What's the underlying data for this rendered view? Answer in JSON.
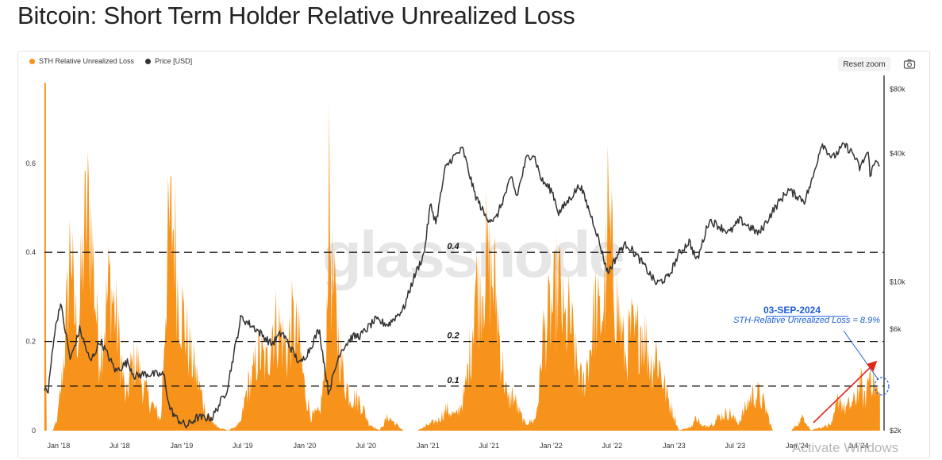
{
  "page": {
    "title": "Bitcoin: Short Term Holder Relative Unrealized Loss"
  },
  "legend": [
    {
      "label": "STH Relative Unrealized Loss",
      "color": "#f7931a"
    },
    {
      "label": "Price [USD]",
      "color": "#333333"
    }
  ],
  "toolbar": {
    "reset_label": "Reset zoom",
    "camera_icon": "camera-icon"
  },
  "watermark": "glassnode",
  "os_overlay": "Activate Windows",
  "chart_data": {
    "type": "area",
    "x_range": [
      "2017-11-20",
      "2024-09-15"
    ],
    "x_ticks": [
      {
        "date": "2018-01-01",
        "label": "Jan '18"
      },
      {
        "date": "2018-07-01",
        "label": "Jul '18"
      },
      {
        "date": "2019-01-01",
        "label": "Jan '19"
      },
      {
        "date": "2019-07-01",
        "label": "Jul '19"
      },
      {
        "date": "2020-01-01",
        "label": "Jan '20"
      },
      {
        "date": "2020-07-01",
        "label": "Jul '20"
      },
      {
        "date": "2021-01-01",
        "label": "Jan '21"
      },
      {
        "date": "2021-07-01",
        "label": "Jul '21"
      },
      {
        "date": "2022-01-01",
        "label": "Jan '22"
      },
      {
        "date": "2022-07-01",
        "label": "Jul '22"
      },
      {
        "date": "2023-01-01",
        "label": "Jan '23"
      },
      {
        "date": "2023-07-01",
        "label": "Jul '23"
      },
      {
        "date": "2024-01-01",
        "label": "Jan '24"
      },
      {
        "date": "2024-07-01",
        "label": "Jul '24"
      }
    ],
    "y_left": {
      "range": [
        0,
        0.79
      ],
      "ticks": [
        {
          "value": 0,
          "label": "0"
        },
        {
          "value": 0.2,
          "label": "0.2"
        },
        {
          "value": 0.4,
          "label": "0.4"
        },
        {
          "value": 0.6,
          "label": "0.6"
        }
      ]
    },
    "y_right": {
      "scale": "log",
      "range": [
        2000,
        90000
      ],
      "ticks": [
        {
          "value": 2000,
          "label": "$2k"
        },
        {
          "value": 6000,
          "label": "$6k"
        },
        {
          "value": 10000,
          "label": "$10k"
        },
        {
          "value": 40000,
          "label": "$40k"
        },
        {
          "value": 80000,
          "label": "$80k"
        }
      ]
    },
    "grid": false,
    "legend_position": "top-left",
    "reference_lines": [
      {
        "value": 0.4,
        "label": "0.4"
      },
      {
        "value": 0.2,
        "label": "0.2"
      },
      {
        "value": 0.1,
        "label": "0.1"
      }
    ],
    "series": [
      {
        "name": "STH Relative Unrealized Loss",
        "type": "area",
        "axis": "left",
        "color": "#f7931a",
        "points": [
          [
            "2017-11-22",
            0.78
          ],
          [
            "2017-11-26",
            0.0
          ],
          [
            "2017-12-15",
            0.0
          ],
          [
            "2017-12-28",
            0.03
          ],
          [
            "2018-01-10",
            0.13
          ],
          [
            "2018-01-20",
            0.25
          ],
          [
            "2018-02-01",
            0.42
          ],
          [
            "2018-02-06",
            0.6
          ],
          [
            "2018-02-15",
            0.33
          ],
          [
            "2018-03-01",
            0.28
          ],
          [
            "2018-03-15",
            0.5
          ],
          [
            "2018-03-25",
            0.6
          ],
          [
            "2018-04-05",
            0.6
          ],
          [
            "2018-04-15",
            0.45
          ],
          [
            "2018-05-01",
            0.22
          ],
          [
            "2018-05-15",
            0.28
          ],
          [
            "2018-06-01",
            0.42
          ],
          [
            "2018-06-20",
            0.32
          ],
          [
            "2018-07-05",
            0.2
          ],
          [
            "2018-07-20",
            0.08
          ],
          [
            "2018-08-05",
            0.18
          ],
          [
            "2018-08-20",
            0.2
          ],
          [
            "2018-09-10",
            0.12
          ],
          [
            "2018-10-01",
            0.08
          ],
          [
            "2018-11-01",
            0.03
          ],
          [
            "2018-11-18",
            0.45
          ],
          [
            "2018-11-25",
            0.55
          ],
          [
            "2018-12-10",
            0.58
          ],
          [
            "2018-12-20",
            0.4
          ],
          [
            "2019-01-05",
            0.32
          ],
          [
            "2019-01-25",
            0.22
          ],
          [
            "2019-02-15",
            0.15
          ],
          [
            "2019-03-15",
            0.05
          ],
          [
            "2019-04-15",
            0.01
          ],
          [
            "2019-05-20",
            0.0
          ],
          [
            "2019-06-25",
            0.02
          ],
          [
            "2019-07-15",
            0.12
          ],
          [
            "2019-08-01",
            0.15
          ],
          [
            "2019-08-15",
            0.22
          ],
          [
            "2019-09-10",
            0.18
          ],
          [
            "2019-09-28",
            0.3
          ],
          [
            "2019-10-20",
            0.28
          ],
          [
            "2019-11-10",
            0.22
          ],
          [
            "2019-11-25",
            0.3
          ],
          [
            "2019-12-15",
            0.25
          ],
          [
            "2020-01-01",
            0.12
          ],
          [
            "2020-01-20",
            0.04
          ],
          [
            "2020-02-15",
            0.05
          ],
          [
            "2020-03-05",
            0.2
          ],
          [
            "2020-03-12",
            0.7
          ],
          [
            "2020-03-20",
            0.45
          ],
          [
            "2020-04-05",
            0.3
          ],
          [
            "2020-04-25",
            0.15
          ],
          [
            "2020-05-15",
            0.1
          ],
          [
            "2020-06-15",
            0.08
          ],
          [
            "2020-07-10",
            0.02
          ],
          [
            "2020-08-10",
            0.0
          ],
          [
            "2020-09-05",
            0.04
          ],
          [
            "2020-09-25",
            0.02
          ],
          [
            "2020-10-20",
            0.0
          ],
          [
            "2020-12-01",
            0.0
          ],
          [
            "2021-01-10",
            0.02
          ],
          [
            "2021-02-01",
            0.03
          ],
          [
            "2021-02-25",
            0.06
          ],
          [
            "2021-03-25",
            0.04
          ],
          [
            "2021-04-20",
            0.1
          ],
          [
            "2021-05-10",
            0.25
          ],
          [
            "2021-05-20",
            0.42
          ],
          [
            "2021-06-01",
            0.38
          ],
          [
            "2021-06-22",
            0.48
          ],
          [
            "2021-07-05",
            0.44
          ],
          [
            "2021-07-20",
            0.4
          ],
          [
            "2021-08-05",
            0.22
          ],
          [
            "2021-08-25",
            0.08
          ],
          [
            "2021-09-10",
            0.1
          ],
          [
            "2021-09-25",
            0.06
          ],
          [
            "2021-10-15",
            0.02
          ],
          [
            "2021-11-15",
            0.03
          ],
          [
            "2021-11-28",
            0.12
          ],
          [
            "2021-12-05",
            0.25
          ],
          [
            "2021-12-20",
            0.3
          ],
          [
            "2022-01-10",
            0.35
          ],
          [
            "2022-01-24",
            0.42
          ],
          [
            "2022-02-10",
            0.28
          ],
          [
            "2022-02-25",
            0.32
          ],
          [
            "2022-03-15",
            0.2
          ],
          [
            "2022-04-05",
            0.12
          ],
          [
            "2022-04-25",
            0.22
          ],
          [
            "2022-05-12",
            0.35
          ],
          [
            "2022-05-25",
            0.3
          ],
          [
            "2022-06-10",
            0.38
          ],
          [
            "2022-06-15",
            0.45
          ],
          [
            "2022-06-18",
            0.6
          ],
          [
            "2022-06-25",
            0.52
          ],
          [
            "2022-07-10",
            0.4
          ],
          [
            "2022-07-25",
            0.3
          ],
          [
            "2022-08-10",
            0.2
          ],
          [
            "2022-08-25",
            0.28
          ],
          [
            "2022-09-10",
            0.25
          ],
          [
            "2022-09-25",
            0.3
          ],
          [
            "2022-10-10",
            0.25
          ],
          [
            "2022-10-25",
            0.18
          ],
          [
            "2022-11-09",
            0.22
          ],
          [
            "2022-11-20",
            0.18
          ],
          [
            "2022-12-10",
            0.1
          ],
          [
            "2022-12-30",
            0.05
          ],
          [
            "2023-01-15",
            0.0
          ],
          [
            "2023-02-20",
            0.01
          ],
          [
            "2023-03-10",
            0.04
          ],
          [
            "2023-03-25",
            0.01
          ],
          [
            "2023-04-25",
            0.02
          ],
          [
            "2023-05-15",
            0.04
          ],
          [
            "2023-06-15",
            0.05
          ],
          [
            "2023-07-10",
            0.02
          ],
          [
            "2023-08-20",
            0.1
          ],
          [
            "2023-09-10",
            0.1
          ],
          [
            "2023-10-01",
            0.06
          ],
          [
            "2023-10-20",
            0.0
          ],
          [
            "2023-12-15",
            0.0
          ],
          [
            "2024-01-22",
            0.04
          ],
          [
            "2024-02-10",
            0.0
          ],
          [
            "2024-04-15",
            0.02
          ],
          [
            "2024-05-05",
            0.1
          ],
          [
            "2024-05-20",
            0.06
          ],
          [
            "2024-06-20",
            0.08
          ],
          [
            "2024-07-05",
            0.14
          ],
          [
            "2024-07-20",
            0.08
          ],
          [
            "2024-08-05",
            0.18
          ],
          [
            "2024-08-20",
            0.12
          ],
          [
            "2024-09-03",
            0.089
          ]
        ]
      },
      {
        "name": "Price [USD]",
        "type": "line",
        "axis": "right",
        "color": "#333333",
        "points": [
          [
            "2017-11-20",
            3200
          ],
          [
            "2017-12-01",
            3000
          ],
          [
            "2017-12-17",
            5400
          ],
          [
            "2018-01-06",
            8000
          ],
          [
            "2018-02-05",
            4300
          ],
          [
            "2018-03-05",
            6000
          ],
          [
            "2018-04-05",
            4200
          ],
          [
            "2018-05-05",
            5300
          ],
          [
            "2018-06-20",
            3800
          ],
          [
            "2018-07-25",
            4200
          ],
          [
            "2018-08-15",
            3600
          ],
          [
            "2018-09-15",
            3700
          ],
          [
            "2018-11-10",
            3650
          ],
          [
            "2018-11-25",
            2600
          ],
          [
            "2018-12-15",
            2300
          ],
          [
            "2019-01-15",
            2100
          ],
          [
            "2019-02-15",
            2300
          ],
          [
            "2019-04-02",
            2300
          ],
          [
            "2019-05-15",
            3100
          ],
          [
            "2019-06-26",
            6800
          ],
          [
            "2019-08-10",
            6000
          ],
          [
            "2019-09-25",
            5100
          ],
          [
            "2019-10-26",
            5800
          ],
          [
            "2019-12-18",
            4100
          ],
          [
            "2020-01-15",
            4800
          ],
          [
            "2020-02-13",
            6000
          ],
          [
            "2020-03-12",
            3000
          ],
          [
            "2020-04-15",
            4700
          ],
          [
            "2020-05-20",
            5500
          ],
          [
            "2020-06-15",
            5600
          ],
          [
            "2020-07-28",
            6600
          ],
          [
            "2020-09-05",
            6300
          ],
          [
            "2020-10-21",
            7500
          ],
          [
            "2020-11-20",
            10500
          ],
          [
            "2020-12-20",
            13500
          ],
          [
            "2021-01-08",
            23000
          ],
          [
            "2021-01-25",
            19000
          ],
          [
            "2021-02-21",
            34000
          ],
          [
            "2021-03-13",
            38000
          ],
          [
            "2021-04-14",
            42000
          ],
          [
            "2021-05-19",
            26000
          ],
          [
            "2021-06-22",
            20000
          ],
          [
            "2021-07-20",
            19500
          ],
          [
            "2021-09-06",
            31000
          ],
          [
            "2021-09-21",
            25000
          ],
          [
            "2021-10-20",
            38000
          ],
          [
            "2021-11-10",
            40000
          ],
          [
            "2021-12-04",
            30000
          ],
          [
            "2022-01-05",
            26500
          ],
          [
            "2022-01-24",
            21000
          ],
          [
            "2022-03-28",
            28500
          ],
          [
            "2022-05-12",
            18000
          ],
          [
            "2022-06-18",
            11000
          ],
          [
            "2022-07-30",
            14500
          ],
          [
            "2022-08-15",
            15000
          ],
          [
            "2022-09-25",
            12500
          ],
          [
            "2022-11-09",
            9800
          ],
          [
            "2022-12-15",
            10500
          ],
          [
            "2023-01-15",
            13500
          ],
          [
            "2023-02-15",
            15500
          ],
          [
            "2023-03-10",
            12500
          ],
          [
            "2023-04-15",
            19500
          ],
          [
            "2023-06-15",
            17000
          ],
          [
            "2023-07-15",
            19500
          ],
          [
            "2023-09-10",
            16800
          ],
          [
            "2023-10-25",
            22000
          ],
          [
            "2023-12-05",
            27000
          ],
          [
            "2024-01-23",
            24000
          ],
          [
            "2024-02-15",
            30000
          ],
          [
            "2024-03-14",
            45000
          ],
          [
            "2024-04-15",
            38000
          ],
          [
            "2024-05-20",
            44000
          ],
          [
            "2024-06-15",
            40000
          ],
          [
            "2024-07-05",
            34000
          ],
          [
            "2024-07-29",
            41000
          ],
          [
            "2024-08-05",
            32000
          ],
          [
            "2024-08-25",
            38000
          ],
          [
            "2024-09-03",
            35000
          ]
        ]
      }
    ],
    "annotations": [
      {
        "date": "2024-09-03",
        "text": "03-SEP-2024"
      },
      {
        "text": "STH-Relative Unrealized Loss = 8.9%"
      }
    ]
  }
}
